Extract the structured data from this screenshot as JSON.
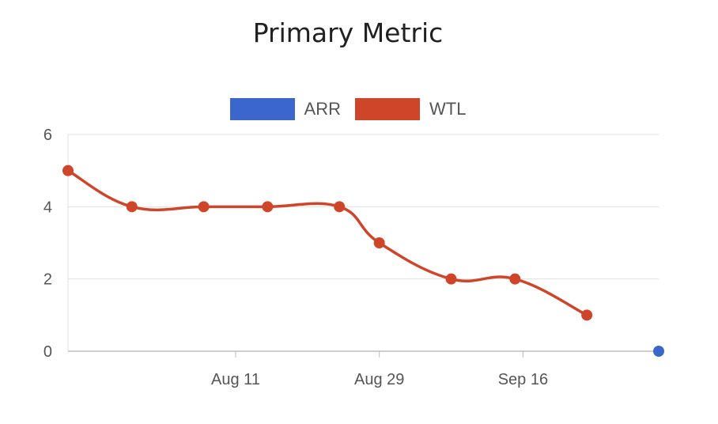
{
  "chart_data": {
    "type": "line",
    "title": "Primary Metric",
    "xlabel": "",
    "ylabel": "",
    "ylim": [
      0,
      6
    ],
    "y_ticks": [
      0,
      2,
      4,
      6
    ],
    "x_ticks": [
      "Aug 11",
      "Aug 29",
      "Sep 16"
    ],
    "x_range": [
      "2023-07-21",
      "2023-10-03"
    ],
    "x_tick_dates": [
      "2023-08-11",
      "2023-08-29",
      "2023-09-16"
    ],
    "grid": true,
    "legend_position": "top",
    "series": [
      {
        "name": "ARR",
        "color": "#3b67cc",
        "points": [
          {
            "x": "2023-10-03",
            "y": 0
          }
        ]
      },
      {
        "name": "WTL",
        "color": "#cf4529",
        "points": [
          {
            "x": "2023-07-21",
            "y": 5
          },
          {
            "x": "2023-07-29",
            "y": 4
          },
          {
            "x": "2023-08-07",
            "y": 4
          },
          {
            "x": "2023-08-15",
            "y": 4
          },
          {
            "x": "2023-08-24",
            "y": 4
          },
          {
            "x": "2023-08-29",
            "y": 3
          },
          {
            "x": "2023-09-07",
            "y": 2
          },
          {
            "x": "2023-09-15",
            "y": 2
          },
          {
            "x": "2023-09-24",
            "y": 1
          }
        ]
      }
    ]
  }
}
